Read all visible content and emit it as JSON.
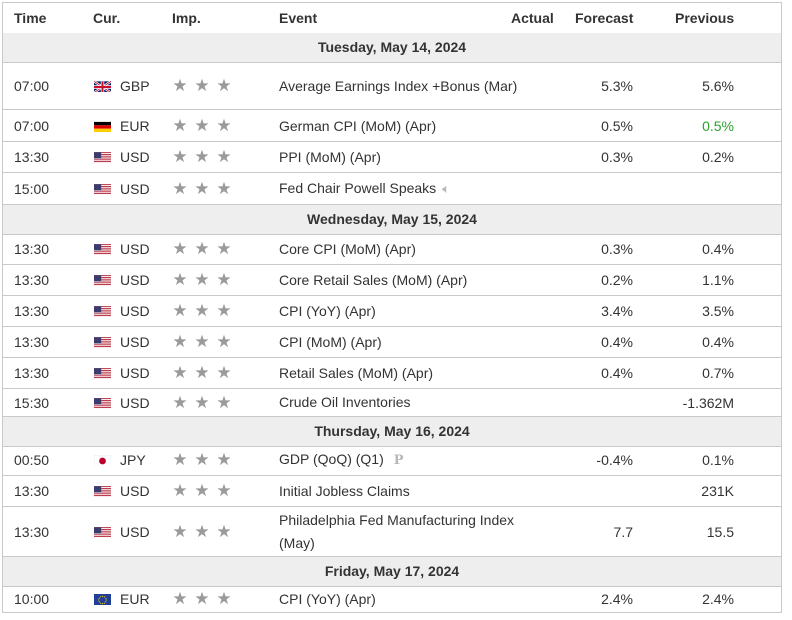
{
  "header": {
    "time": "Time",
    "cur": "Cur.",
    "imp": "Imp.",
    "event": "Event",
    "actual": "Actual",
    "forecast": "Forecast",
    "previous": "Previous"
  },
  "days": [
    {
      "label": "Tuesday, May 14, 2024",
      "rows": [
        {
          "time": "07:00",
          "country": "gb",
          "cur": "GBP",
          "event": "Average Earnings Index +Bonus (Mar)",
          "actual": "",
          "forecast": "5.3%",
          "previous": "5.6%",
          "previous_color": ""
        },
        {
          "time": "07:00",
          "country": "de",
          "cur": "EUR",
          "event": "German CPI (MoM) (Apr)",
          "actual": "",
          "forecast": "0.5%",
          "previous": "0.5%",
          "previous_color": "green"
        },
        {
          "time": "13:30",
          "country": "us",
          "cur": "USD",
          "event": "PPI (MoM) (Apr)",
          "actual": "",
          "forecast": "0.3%",
          "previous": "0.2%",
          "previous_color": ""
        },
        {
          "time": "15:00",
          "country": "us",
          "cur": "USD",
          "event": "Fed Chair Powell Speaks",
          "actual": "",
          "forecast": "",
          "previous": "",
          "previous_color": "",
          "icon": "speaker-icon"
        }
      ]
    },
    {
      "label": "Wednesday, May 15, 2024",
      "rows": [
        {
          "time": "13:30",
          "country": "us",
          "cur": "USD",
          "event": "Core CPI (MoM) (Apr)",
          "actual": "",
          "forecast": "0.3%",
          "previous": "0.4%",
          "previous_color": ""
        },
        {
          "time": "13:30",
          "country": "us",
          "cur": "USD",
          "event": "Core Retail Sales (MoM) (Apr)",
          "actual": "",
          "forecast": "0.2%",
          "previous": "1.1%",
          "previous_color": ""
        },
        {
          "time": "13:30",
          "country": "us",
          "cur": "USD",
          "event": "CPI (YoY) (Apr)",
          "actual": "",
          "forecast": "3.4%",
          "previous": "3.5%",
          "previous_color": ""
        },
        {
          "time": "13:30",
          "country": "us",
          "cur": "USD",
          "event": "CPI (MoM) (Apr)",
          "actual": "",
          "forecast": "0.4%",
          "previous": "0.4%",
          "previous_color": ""
        },
        {
          "time": "13:30",
          "country": "us",
          "cur": "USD",
          "event": "Retail Sales (MoM) (Apr)",
          "actual": "",
          "forecast": "0.4%",
          "previous": "0.7%",
          "previous_color": ""
        },
        {
          "time": "15:30",
          "country": "us",
          "cur": "USD",
          "event": "Crude Oil Inventories",
          "actual": "",
          "forecast": "",
          "previous": "-1.362M",
          "previous_color": ""
        }
      ]
    },
    {
      "label": "Thursday, May 16, 2024",
      "rows": [
        {
          "time": "00:50",
          "country": "jp",
          "cur": "JPY",
          "event": "GDP (QoQ) (Q1)",
          "actual": "",
          "forecast": "-0.4%",
          "previous": "0.1%",
          "previous_color": "",
          "icon": "preliminary-icon"
        },
        {
          "time": "13:30",
          "country": "us",
          "cur": "USD",
          "event": "Initial Jobless Claims",
          "actual": "",
          "forecast": "",
          "previous": "231K",
          "previous_color": ""
        },
        {
          "time": "13:30",
          "country": "us",
          "cur": "USD",
          "event": "Philadelphia Fed Manufacturing Index (May)",
          "actual": "",
          "forecast": "7.7",
          "previous": "15.5",
          "previous_color": ""
        }
      ]
    },
    {
      "label": "Friday, May 17, 2024",
      "rows": [
        {
          "time": "10:00",
          "country": "eu",
          "cur": "EUR",
          "event": "CPI (YoY) (Apr)",
          "actual": "",
          "forecast": "2.4%",
          "previous": "2.4%",
          "previous_color": ""
        }
      ]
    }
  ],
  "importance_stars": 3,
  "colors": {
    "green": "#2da02d",
    "border": "#c9c9c9",
    "day_bg": "#eeeeee",
    "star": "#9a9a9a"
  }
}
